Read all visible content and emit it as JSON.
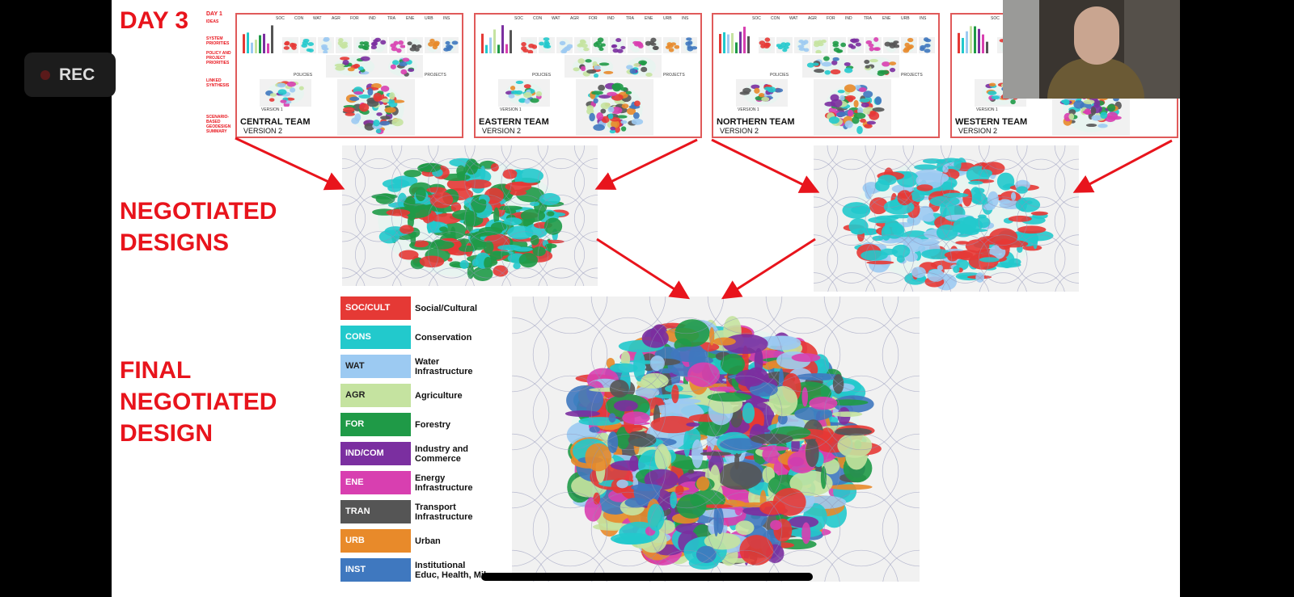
{
  "recording": "REC",
  "slide": {
    "day_title": "DAY 3",
    "negotiated_title": [
      "NEGOTIATED",
      "DESIGNS"
    ],
    "final_title": [
      "FINAL",
      "NEGOTIATED",
      "DESIGN"
    ],
    "side_labels": [
      "DAY 1",
      "IDEAS",
      "SYSTEM PRIORITIES",
      "POLICY AND PROJECT PRIORITIES",
      "LINKED SYNTHESIS",
      "SCENARIO-BASED GEODESIGN SUMMARY"
    ],
    "panel_columns": [
      "SOC",
      "CON",
      "WAT",
      "AGR",
      "FOR",
      "IND",
      "TRA",
      "ENE",
      "URB",
      "INS"
    ],
    "panel_labels": {
      "policies": "POLICIES",
      "projects": "PROJECTS",
      "version1": "VERSION 1"
    },
    "teams": [
      {
        "name": "CENTRAL TEAM",
        "version": "VERSION 2"
      },
      {
        "name": "EASTERN TEAM",
        "version": "VERSION 2"
      },
      {
        "name": "NORTHERN TEAM",
        "version": "VERSION 2"
      },
      {
        "name": "WESTERN TEAM",
        "version": "VERSION 2"
      }
    ],
    "legend": [
      {
        "code": "SOC/CULT",
        "label": [
          "Social/Cultural"
        ],
        "color": "#e53935"
      },
      {
        "code": "CONS",
        "label": [
          "Conservation"
        ],
        "color": "#22c9cc"
      },
      {
        "code": "WAT",
        "label": [
          "Water",
          "Infrastructure"
        ],
        "color": "#9ccaf2"
      },
      {
        "code": "AGR",
        "label": [
          "Agriculture"
        ],
        "color": "#c5e3a0"
      },
      {
        "code": "FOR",
        "label": [
          "Forestry"
        ],
        "color": "#1f9a47"
      },
      {
        "code": "IND/COM",
        "label": [
          "Industry and",
          "Commerce"
        ],
        "color": "#7b2fa0"
      },
      {
        "code": "ENE",
        "label": [
          "Energy",
          "Infrastructure"
        ],
        "color": "#d83fb0"
      },
      {
        "code": "TRAN",
        "label": [
          "Transport",
          "Infrastructure"
        ],
        "color": "#555555"
      },
      {
        "code": "URB",
        "label": [
          "Urban"
        ],
        "color": "#e88a2a"
      },
      {
        "code": "INST",
        "label": [
          "Institutional",
          "Educ, Health, Mil"
        ],
        "color": "#3f78bf"
      }
    ]
  }
}
